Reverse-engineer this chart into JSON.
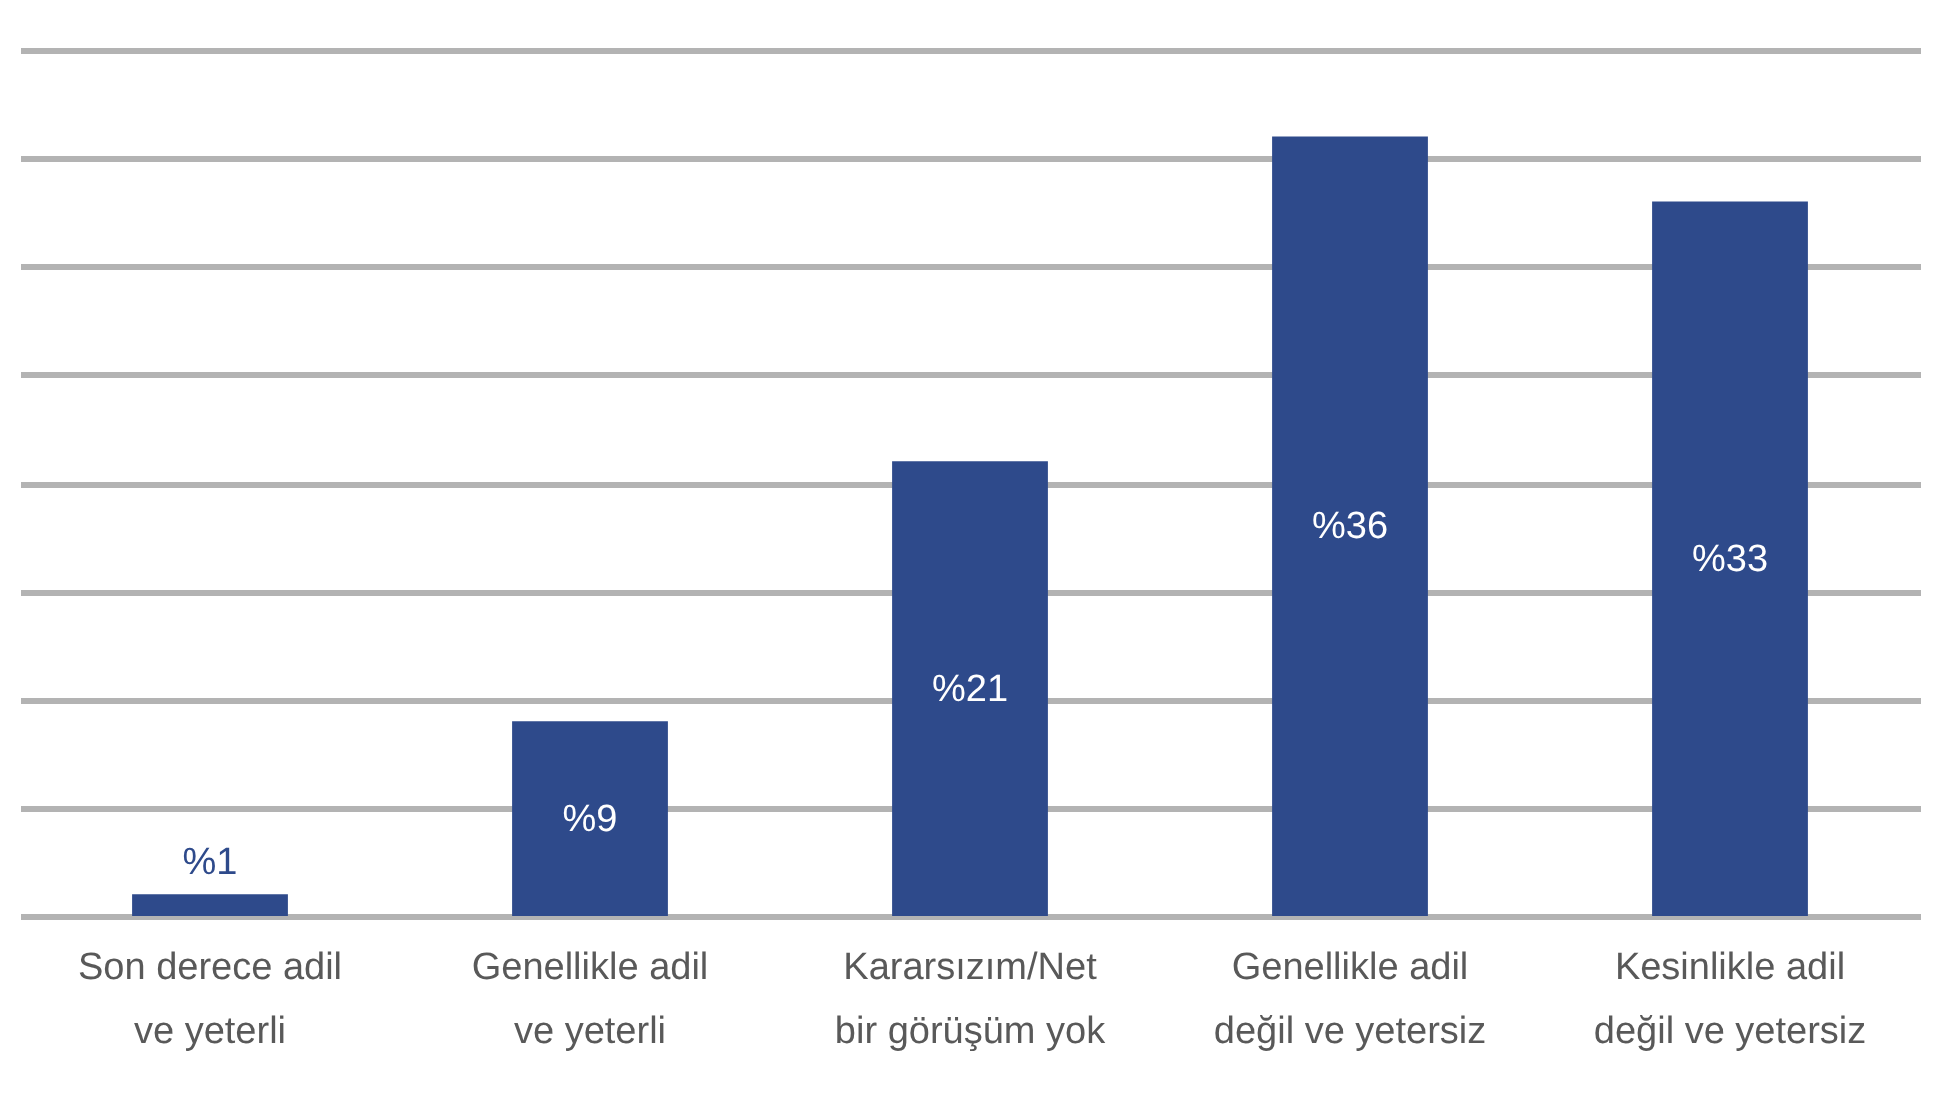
{
  "chart_data": {
    "type": "bar",
    "categories": [
      "Son derece adil ve yeterli",
      "Genellikle adil ve yeterli",
      "Kararsızım/Net bir görüşüm yok",
      "Genellikle adil değil ve yetersiz",
      "Kesinlikle adil değil ve yetersiz"
    ],
    "values": [
      1,
      9,
      21,
      36,
      33
    ],
    "value_labels": [
      "%1",
      "%9",
      "%21",
      "%36",
      "%33"
    ],
    "color": "#2e4a8b",
    "ylim": [
      0,
      40
    ],
    "yticks": [
      {
        "value": 0,
        "label": null
      },
      {
        "value": 5,
        "label": null
      },
      {
        "value": 10,
        "label": null
      },
      {
        "value": 15,
        "label": null
      },
      {
        "value": 20,
        "label": null
      },
      {
        "value": 25,
        "label": null
      },
      {
        "value": 30,
        "label": null
      },
      {
        "value": 35,
        "label": null
      },
      {
        "value": 40,
        "label": null
      }
    ],
    "grid": "y",
    "tick_labels": "x"
  }
}
